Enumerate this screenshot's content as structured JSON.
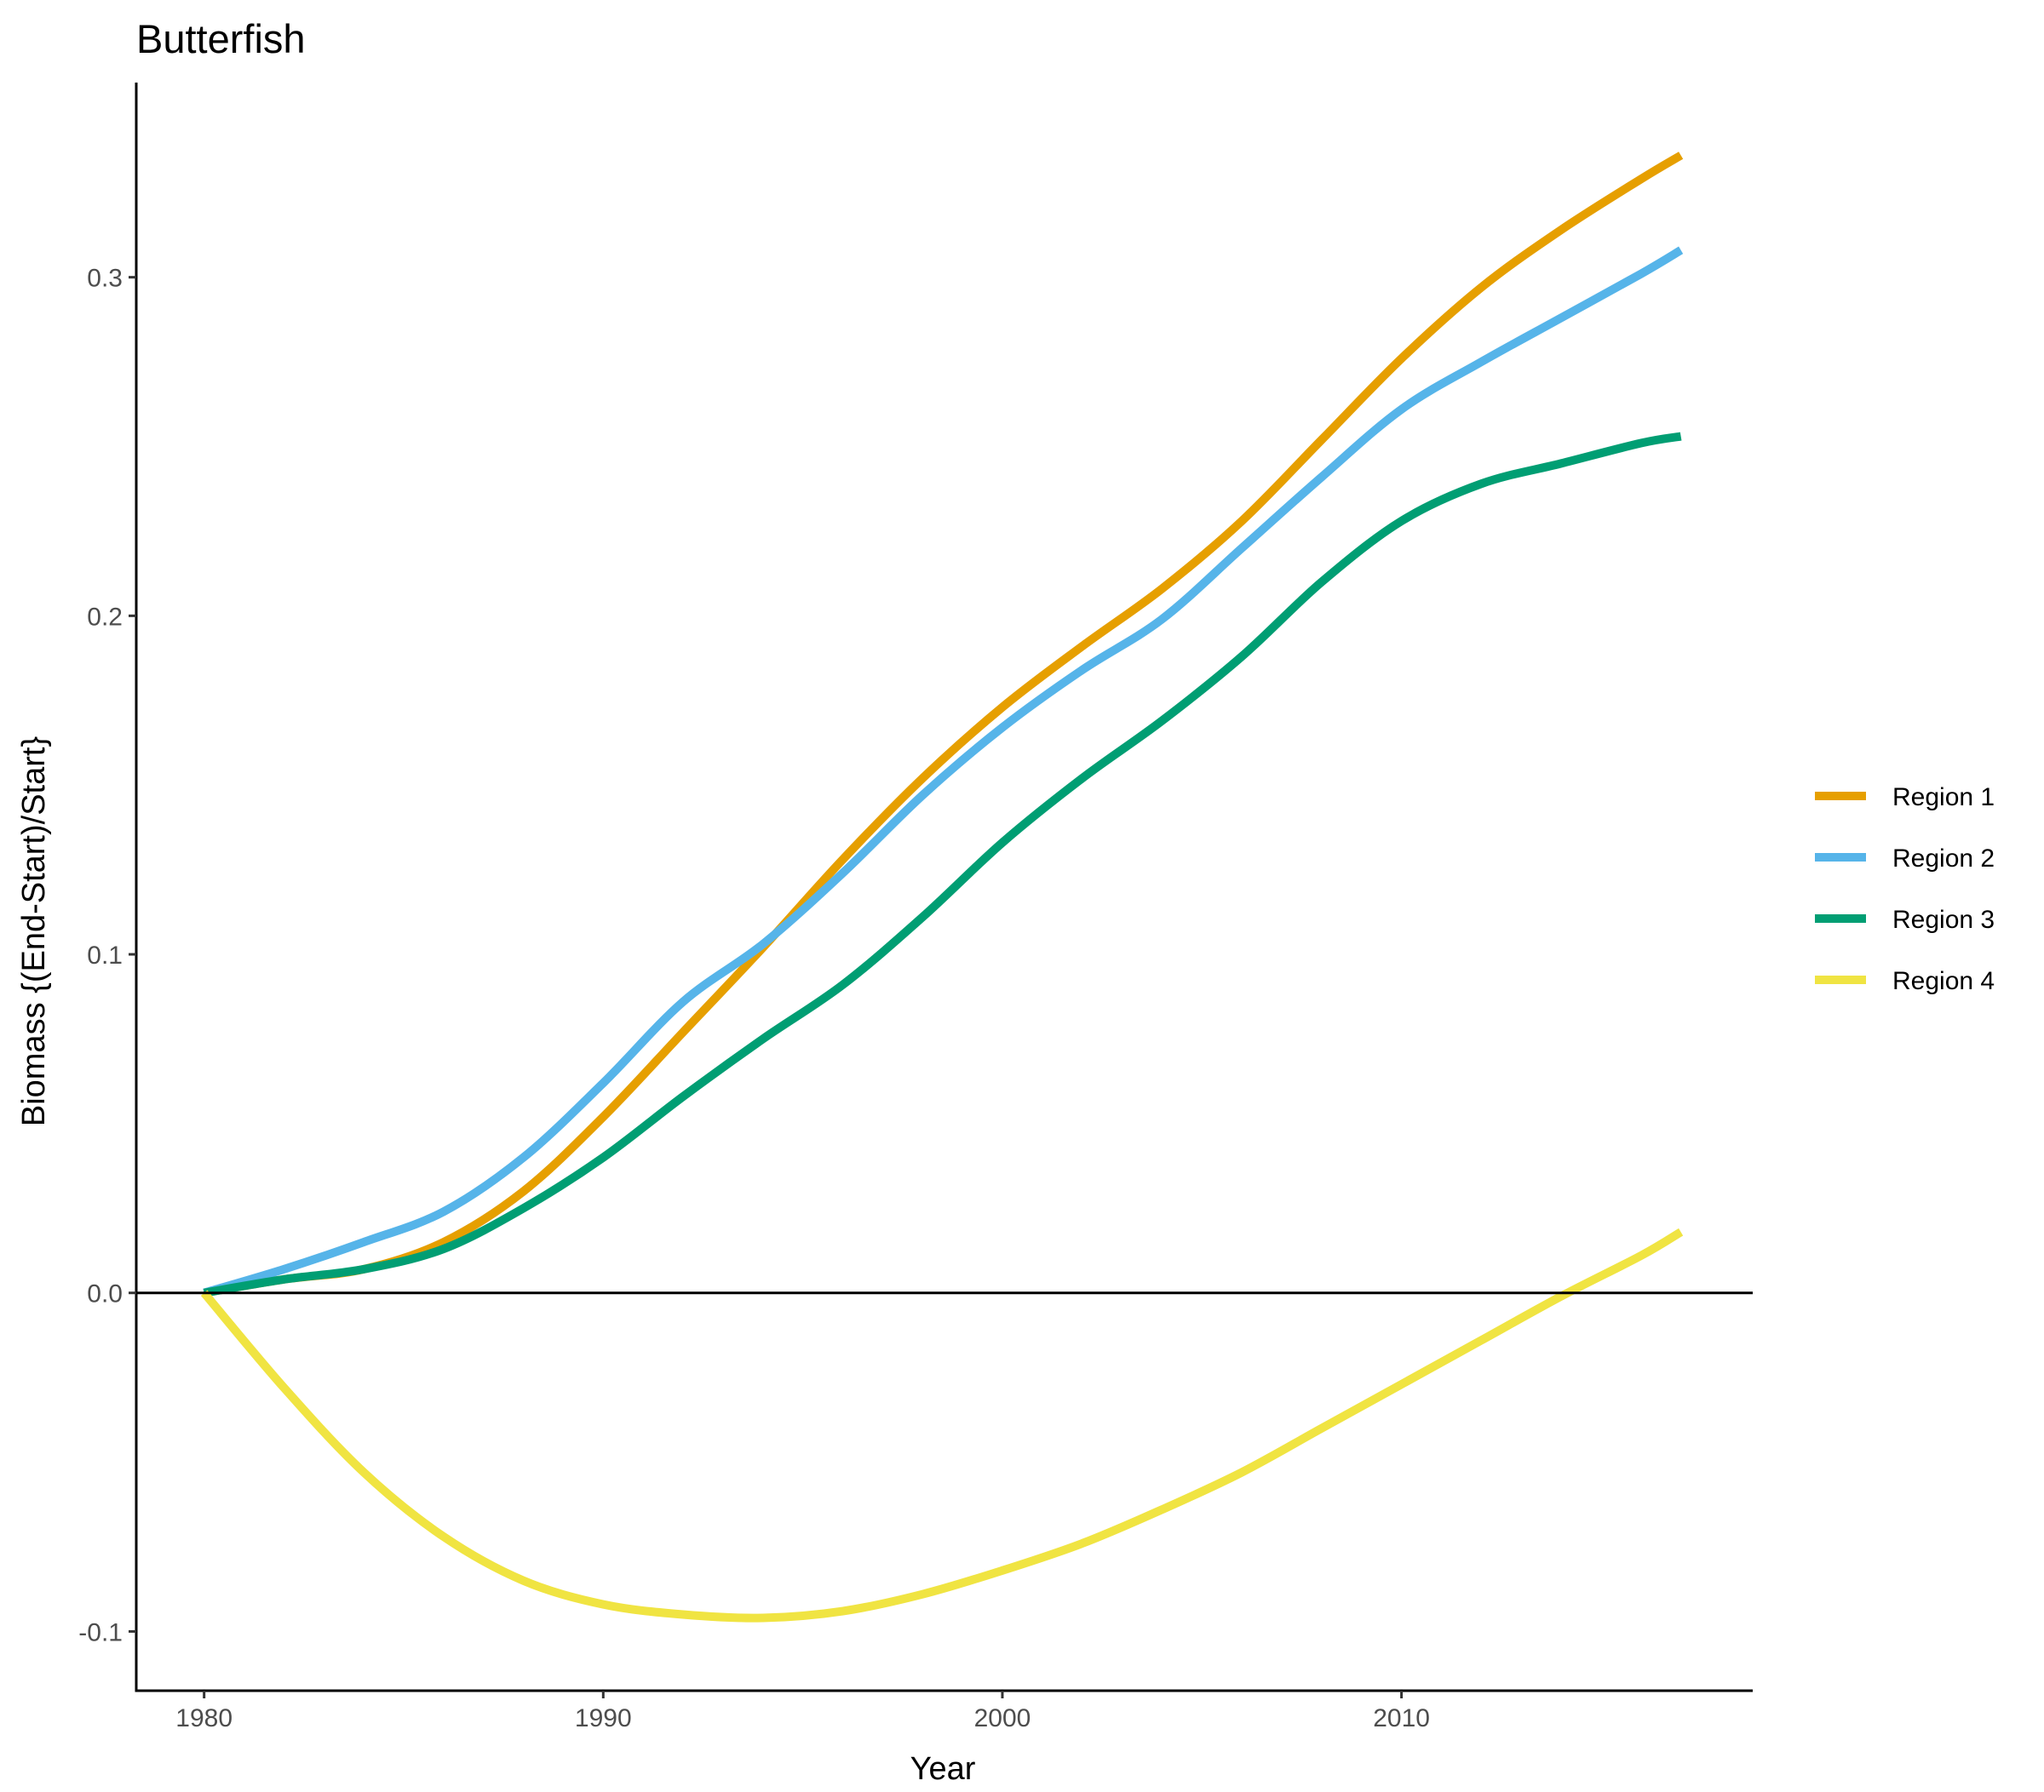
{
  "chart_data": {
    "type": "line",
    "title": "Butterfish",
    "xlabel": "Year",
    "ylabel": "Biomass {(End-Start)/Start}",
    "xlim": [
      1978.3,
      2018.8
    ],
    "ylim": [
      -0.1175,
      0.3575
    ],
    "xticks": [
      1980,
      1990,
      2000,
      2010
    ],
    "xtick_labels": [
      "1980",
      "1990",
      "2000",
      "2010"
    ],
    "yticks": [
      -0.1,
      0.0,
      0.1,
      0.2,
      0.3
    ],
    "ytick_labels": [
      "-0.1",
      "0.0",
      "0.1",
      "0.2",
      "0.3"
    ],
    "hline": 0,
    "grid": false,
    "legend_position": "right",
    "x": [
      1980,
      1982,
      1984,
      1986,
      1988,
      1990,
      1992,
      1994,
      1996,
      1998,
      2000,
      2002,
      2004,
      2006,
      2008,
      2010,
      2012,
      2014,
      2016,
      2017
    ],
    "series": [
      {
        "name": "Region 1",
        "color": "#E69F00",
        "values": [
          0.0,
          0.004,
          0.007,
          0.015,
          0.03,
          0.052,
          0.077,
          0.102,
          0.128,
          0.152,
          0.173,
          0.191,
          0.208,
          0.228,
          0.252,
          0.276,
          0.297,
          0.314,
          0.329,
          0.336
        ]
      },
      {
        "name": "Region 2",
        "color": "#56B4E9",
        "values": [
          0.0,
          0.007,
          0.015,
          0.024,
          0.04,
          0.062,
          0.086,
          0.103,
          0.124,
          0.147,
          0.167,
          0.184,
          0.199,
          0.22,
          0.241,
          0.261,
          0.275,
          0.288,
          0.301,
          0.308
        ]
      },
      {
        "name": "Region 3",
        "color": "#009E73",
        "values": [
          0.0,
          0.004,
          0.007,
          0.013,
          0.025,
          0.04,
          0.058,
          0.075,
          0.091,
          0.111,
          0.133,
          0.152,
          0.169,
          0.188,
          0.21,
          0.228,
          0.239,
          0.245,
          0.251,
          0.253
        ]
      },
      {
        "name": "Region 4",
        "color": "#F0E442",
        "values": [
          0.0,
          -0.028,
          -0.053,
          -0.072,
          -0.085,
          -0.092,
          -0.095,
          -0.096,
          -0.094,
          -0.089,
          -0.082,
          -0.074,
          -0.064,
          -0.053,
          -0.04,
          -0.027,
          -0.014,
          -0.001,
          0.011,
          0.018
        ]
      }
    ]
  }
}
